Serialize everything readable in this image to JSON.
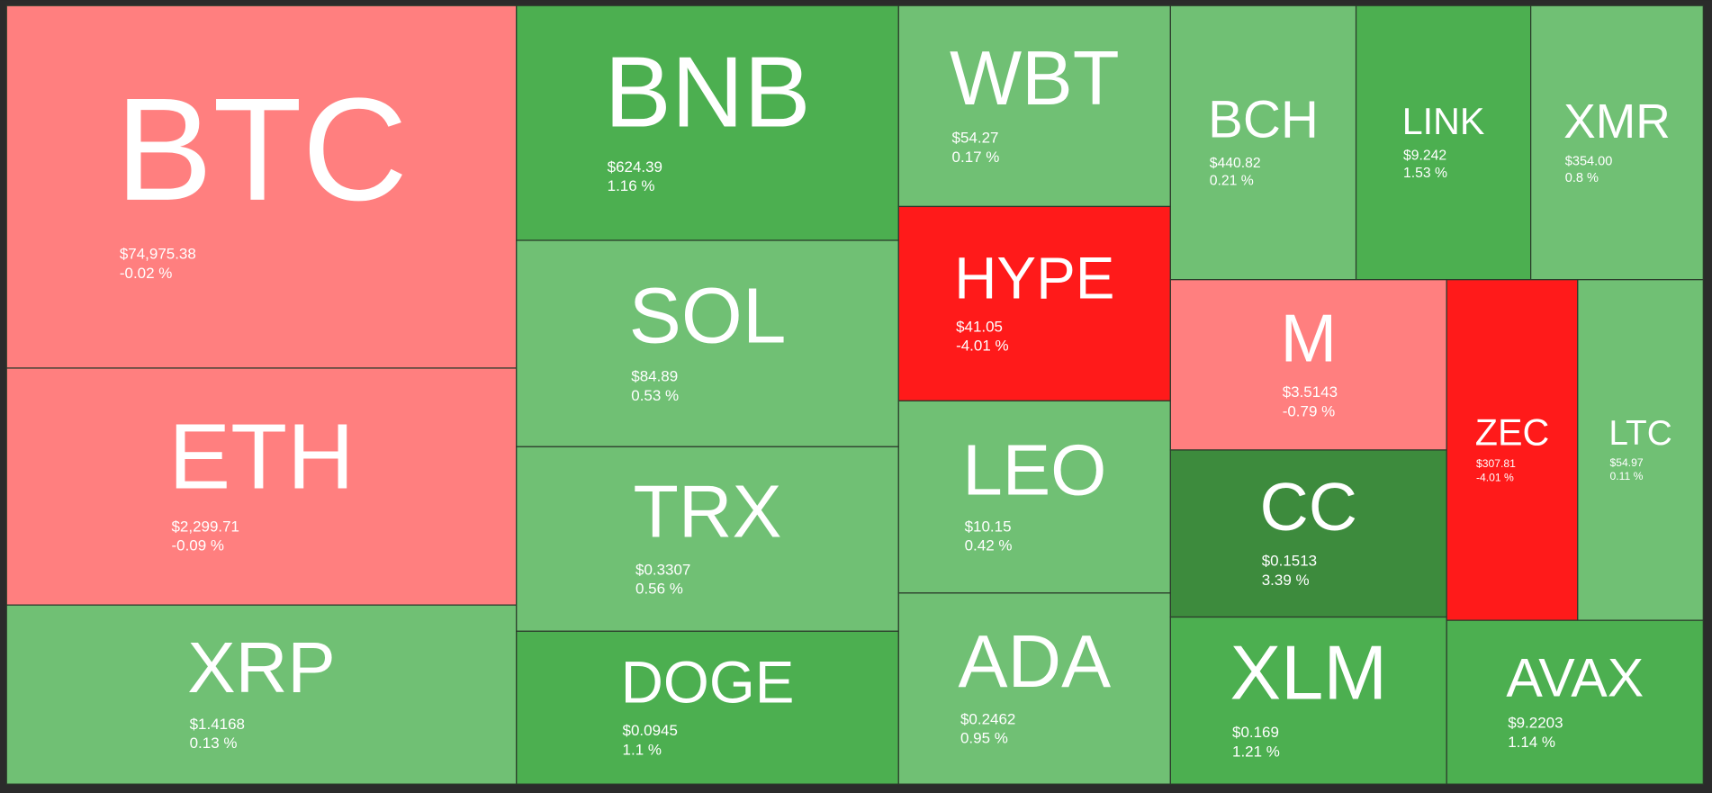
{
  "tiles": [
    {
      "symbol": "BTC",
      "price": "$74,975.38",
      "change": "-0.02 %",
      "color": "#ff7f7f"
    },
    {
      "symbol": "ETH",
      "price": "$2,299.71",
      "change": "-0.09 %",
      "color": "#ff7f7f"
    },
    {
      "symbol": "XRP",
      "price": "$1.4168",
      "change": "0.13 %",
      "color": "#70c074"
    },
    {
      "symbol": "BNB",
      "price": "$624.39",
      "change": "1.16 %",
      "color": "#4caf50"
    },
    {
      "symbol": "SOL",
      "price": "$84.89",
      "change": "0.53 %",
      "color": "#70c074"
    },
    {
      "symbol": "TRX",
      "price": "$0.3307",
      "change": "0.56 %",
      "color": "#70c074"
    },
    {
      "symbol": "DOGE",
      "price": "$0.0945",
      "change": "1.1 %",
      "color": "#4caf50"
    },
    {
      "symbol": "WBT",
      "price": "$54.27",
      "change": "0.17 %",
      "color": "#70c074"
    },
    {
      "symbol": "HYPE",
      "price": "$41.05",
      "change": "-4.01 %",
      "color": "#ff1a1a"
    },
    {
      "symbol": "LEO",
      "price": "$10.15",
      "change": "0.42 %",
      "color": "#70c074"
    },
    {
      "symbol": "ADA",
      "price": "$0.2462",
      "change": "0.95 %",
      "color": "#70c074"
    },
    {
      "symbol": "BCH",
      "price": "$440.82",
      "change": "0.21 %",
      "color": "#70c074"
    },
    {
      "symbol": "LINK",
      "price": "$9.242",
      "change": "1.53 %",
      "color": "#4caf50"
    },
    {
      "symbol": "XMR",
      "price": "$354.00",
      "change": "0.8 %",
      "color": "#70c074"
    },
    {
      "symbol": "M",
      "price": "$3.5143",
      "change": "-0.79 %",
      "color": "#ff7f7f"
    },
    {
      "symbol": "CC",
      "price": "$0.1513",
      "change": "3.39 %",
      "color": "#3d8b3d"
    },
    {
      "symbol": "XLM",
      "price": "$0.169",
      "change": "1.21 %",
      "color": "#4caf50"
    },
    {
      "symbol": "ZEC",
      "price": "$307.81",
      "change": "-4.01 %",
      "color": "#ff1a1a"
    },
    {
      "symbol": "LTC",
      "price": "$54.97",
      "change": "0.11 %",
      "color": "#70c074"
    },
    {
      "symbol": "AVAX",
      "price": "$9.2203",
      "change": "1.14 %",
      "color": "#4caf50"
    }
  ]
}
